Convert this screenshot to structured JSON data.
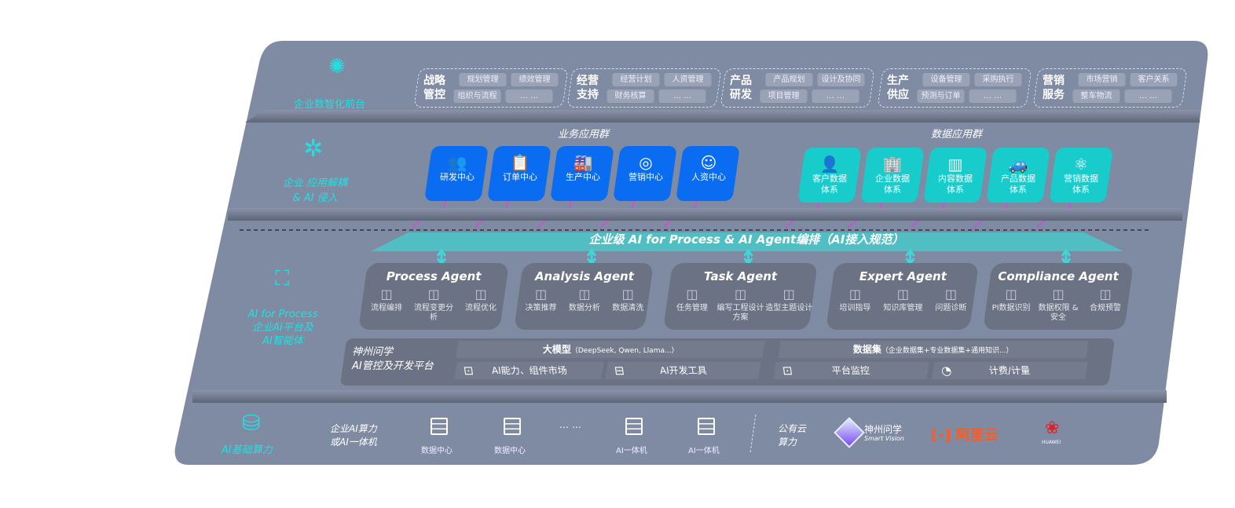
{
  "layers": {
    "front": {
      "label": "企业数智化前台",
      "icon": "brain-icon"
    },
    "apps": {
      "label_line1": "企业 应用解耦",
      "label_line2": "& AI 侵入",
      "icon": "molecule-icon"
    },
    "ai": {
      "label_line1": "AI for Process",
      "label_line2": "企业AI平台及",
      "label_line3": "AI智能体",
      "icon": "face-scan-icon"
    },
    "infra": {
      "label": "AI基础算力",
      "icon": "database-icon"
    }
  },
  "front_groups": [
    {
      "title": "战略管控",
      "items": [
        "规划管理",
        "绩效管理",
        "组织与流程",
        "… …"
      ]
    },
    {
      "title": "经营支持",
      "items": [
        "经营计划",
        "人资管理",
        "财务核算",
        "… …"
      ]
    },
    {
      "title": "产品研发",
      "items": [
        "产品规划",
        "设计及协同",
        "项目管理",
        "… …"
      ]
    },
    {
      "title": "生产供应",
      "items": [
        "设备管理",
        "采购执行",
        "预测与订单",
        "… …"
      ]
    },
    {
      "title": "营销服务",
      "items": [
        "市场营销",
        "客户关系",
        "整车物流",
        "… …"
      ]
    }
  ],
  "business_apps": {
    "title": "业务应用群",
    "color": "#0a6cf0",
    "items": [
      {
        "label": "研发中心",
        "icon": "users-icon",
        "glyph": "👥"
      },
      {
        "label": "订单中心",
        "icon": "clipboard-icon",
        "glyph": "📋"
      },
      {
        "label": "生产中心",
        "icon": "factory-icon",
        "glyph": "🏭"
      },
      {
        "label": "营销中心",
        "icon": "target-icon",
        "glyph": "◎"
      },
      {
        "label": "人资中心",
        "icon": "person-icon",
        "glyph": "☺"
      }
    ]
  },
  "data_apps": {
    "title": "数据应用群",
    "color": "#18cccc",
    "items": [
      {
        "label": "客户数据体系",
        "icon": "user-icon",
        "glyph": "👤"
      },
      {
        "label": "企业数据体系",
        "icon": "building-icon",
        "glyph": "🏢"
      },
      {
        "label": "内容数据体系",
        "icon": "books-icon",
        "glyph": "▥"
      },
      {
        "label": "产品数据体系",
        "icon": "car-icon",
        "glyph": "🚙"
      },
      {
        "label": "营销数据体系",
        "icon": "atom-icon",
        "glyph": "⚛"
      }
    ]
  },
  "orchestration_title": "企业级 AI for Process & AI Agent编排（AI接入规范）",
  "agents": [
    {
      "title": "Process Agent",
      "items": [
        "流程编排",
        "流程变更分析",
        "流程优化"
      ],
      "icons": [
        "chart-window-icon",
        "list-icon",
        "optimize-icon"
      ]
    },
    {
      "title": "Analysis Agent",
      "items": [
        "决策推荐",
        "数据分析",
        "数据清洗"
      ],
      "icons": [
        "head-icon",
        "atom-icon",
        "document-icon"
      ]
    },
    {
      "title": "Task Agent",
      "items": [
        "任务管理",
        "编写工程设计方案",
        "造型主题设计"
      ],
      "icons": [
        "network-icon",
        "cloud-icon",
        "checklist-icon"
      ]
    },
    {
      "title": "Expert Agent",
      "items": [
        "培训指导",
        "知识库管理",
        "问题诊断"
      ],
      "icons": [
        "pen-icon",
        "layers-icon",
        "diagnose-icon"
      ]
    },
    {
      "title": "Compliance Agent",
      "items": [
        "PI数据识别",
        "数据权限 & 安全",
        "合规预警"
      ],
      "icons": [
        "id-card-icon",
        "link-icon",
        "alert-icon"
      ]
    }
  ],
  "platform": {
    "name_line1": "神州问学",
    "name_line2": "AI管控及开发平台",
    "llm": "大模型",
    "llm_note": "（DeepSeek, Qwen, Llama...）",
    "dataset": "数据集",
    "dataset_note": "（企业数据集+专业数据集+通用知识...）",
    "tools": [
      {
        "label": "AI能力、组件市场",
        "icon": "market-icon"
      },
      {
        "label": "AI开发工具",
        "icon": "dev-tool-icon"
      },
      {
        "label": "平台监控",
        "icon": "monitor-icon"
      },
      {
        "label": "计费/计量",
        "icon": "gauge-icon"
      }
    ]
  },
  "infra": {
    "private_line1": "企业AI算力",
    "private_line2": "或AI一体机",
    "servers": [
      "数据中心",
      "数据中心",
      "AI一体机",
      "AI一体机"
    ],
    "ellipsis": "… …",
    "public_line1": "公有云",
    "public_line2": "算力",
    "vendors": {
      "smartvision_cn": "神州问学",
      "smartvision_en": "Smart Vision",
      "aliyun": "阿里云",
      "aliyun_color": "#ff5a1f",
      "huawei": "HUAWEI",
      "huawei_color": "#e41f26"
    }
  }
}
